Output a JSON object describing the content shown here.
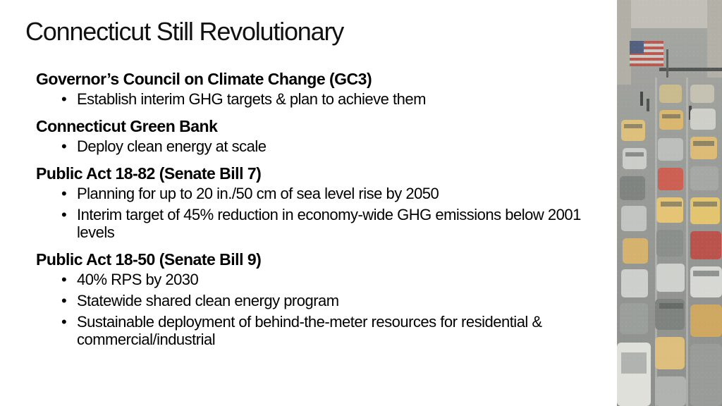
{
  "slide": {
    "title": "Connecticut Still Revolutionary"
  },
  "sections": [
    {
      "heading": "Governor’s Council on Climate Change (GC3)",
      "bullets": [
        "Establish interim GHG targets & plan to achieve them"
      ]
    },
    {
      "heading": "Connecticut Green Bank",
      "bullets": [
        "Deploy clean energy at scale"
      ]
    },
    {
      "heading": "Public Act 18-82 (Senate Bill 7)",
      "bullets": [
        "Planning for up to 20 in./50 cm of sea level rise by 2050",
        "Interim target of 45% reduction in economy-wide GHG emissions below 2001 levels"
      ]
    },
    {
      "heading": "Public Act 18-50 (Senate Bill 9)",
      "bullets": [
        "40% RPS by 2030",
        "Statewide shared clean energy program",
        "Sustainable deployment of behind-the-meter resources for residential & commercial/industrial"
      ]
    }
  ],
  "colors": {
    "background": "#ffffff",
    "text": "#000000",
    "photo_road": "#8c8f8a",
    "flag_red": "#b0443b",
    "flag_blue": "#3c4b6e"
  },
  "icons": {
    "bullet": "•"
  },
  "image": {
    "subject": "street-traffic-photo"
  }
}
